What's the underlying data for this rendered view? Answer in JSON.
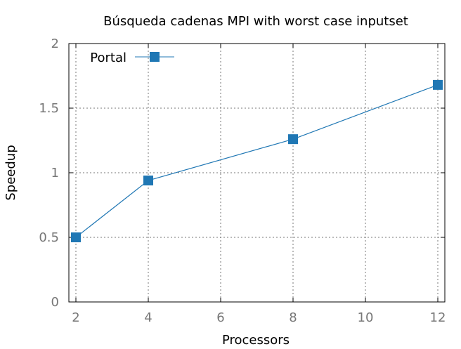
{
  "chart_data": {
    "type": "line",
    "title": "Búsqueda cadenas MPI with worst case inputset",
    "xlabel": "Processors",
    "ylabel": "Speedup",
    "xlim": [
      2,
      12
    ],
    "ylim": [
      0,
      2
    ],
    "xticks": [
      2,
      4,
      6,
      8,
      10,
      12
    ],
    "yticks": [
      0,
      0.5,
      1,
      1.5,
      2
    ],
    "xtick_labels": [
      "2",
      "4",
      "6",
      "8",
      "10",
      "12"
    ],
    "ytick_labels": [
      "0",
      "0.5",
      "1",
      "1.5",
      "2"
    ],
    "grid": true,
    "legend_position": "top-left",
    "series": [
      {
        "name": "Portal",
        "color": "#1f77b4",
        "marker": "square",
        "x": [
          2,
          4,
          8,
          12
        ],
        "y": [
          0.5,
          0.94,
          1.26,
          1.68
        ]
      }
    ]
  }
}
